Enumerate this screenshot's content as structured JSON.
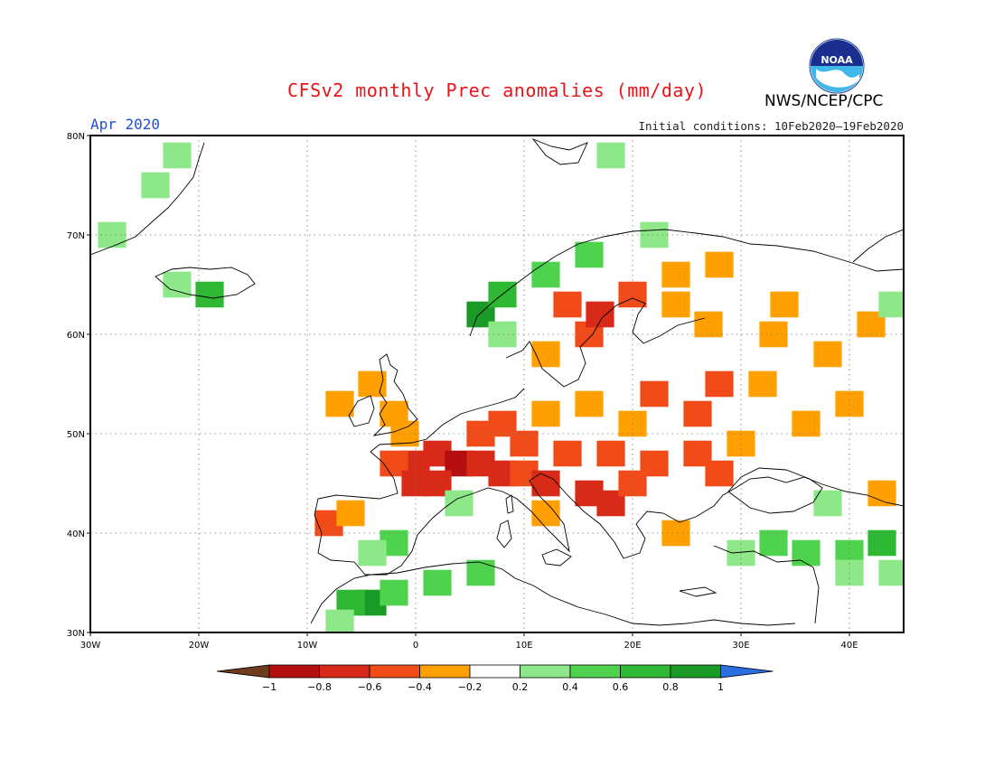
{
  "header": {
    "title": "CFSv2 monthly Prec anomalies (mm/day)",
    "agency": "NWS/NCEP/CPC",
    "logo_text": "NOAA",
    "month": "Apr 2020",
    "initial_conditions": "Initial conditions: 10Feb2020–19Feb2020"
  },
  "map": {
    "region": "Europe",
    "projection": "lat-lon",
    "lon_range": [
      -30,
      45
    ],
    "lat_range": [
      30,
      80
    ],
    "lat_labels": [
      "80N",
      "70N",
      "60N",
      "50N",
      "40N",
      "30N"
    ],
    "lon_labels": [
      "30W",
      "20W",
      "10W",
      "0",
      "10E",
      "20E",
      "30E",
      "40E"
    ],
    "grid": "dotted"
  },
  "colorbar": {
    "labels": [
      "−1",
      "−0.8",
      "−0.6",
      "−0.4",
      "−0.2",
      "0.2",
      "0.4",
      "0.6",
      "0.8",
      "1"
    ],
    "colors": [
      "#6e3b1e",
      "#b40e0e",
      "#d82a18",
      "#f04b18",
      "#ffa000",
      "#ffffff",
      "#8ee88a",
      "#4fd34f",
      "#2eb834",
      "#1a9a26",
      "#2a6ee0"
    ]
  },
  "anomaly_cells": [
    {
      "lon": 2,
      "lat": 48,
      "v": -0.75
    },
    {
      "lon": 4,
      "lat": 47,
      "v": -0.85
    },
    {
      "lon": 6,
      "lat": 47,
      "v": -0.8
    },
    {
      "lon": 0,
      "lat": 47,
      "v": -0.7
    },
    {
      "lon": -2,
      "lat": 47,
      "v": -0.6
    },
    {
      "lon": 2,
      "lat": 45,
      "v": -0.7
    },
    {
      "lon": 0,
      "lat": 45,
      "v": -0.65
    },
    {
      "lon": 8,
      "lat": 46,
      "v": -0.7
    },
    {
      "lon": 10,
      "lat": 46,
      "v": -0.6
    },
    {
      "lon": 12,
      "lat": 45,
      "v": -0.65
    },
    {
      "lon": 16,
      "lat": 44,
      "v": -0.75
    },
    {
      "lon": 18,
      "lat": 43,
      "v": -0.8
    },
    {
      "lon": 20,
      "lat": 45,
      "v": -0.6
    },
    {
      "lon": 8,
      "lat": 51,
      "v": -0.6
    },
    {
      "lon": 6,
      "lat": 50,
      "v": -0.55
    },
    {
      "lon": 10,
      "lat": 49,
      "v": -0.5
    },
    {
      "lon": 14,
      "lat": 48,
      "v": -0.45
    },
    {
      "lon": 18,
      "lat": 48,
      "v": -0.5
    },
    {
      "lon": 22,
      "lat": 47,
      "v": -0.45
    },
    {
      "lon": 26,
      "lat": 48,
      "v": -0.5
    },
    {
      "lon": 28,
      "lat": 46,
      "v": -0.45
    },
    {
      "lon": 26,
      "lat": 52,
      "v": -0.55
    },
    {
      "lon": 22,
      "lat": 54,
      "v": -0.5
    },
    {
      "lon": 28,
      "lat": 55,
      "v": -0.5
    },
    {
      "lon": 16,
      "lat": 53,
      "v": -0.4
    },
    {
      "lon": 12,
      "lat": 52,
      "v": -0.35
    },
    {
      "lon": 20,
      "lat": 51,
      "v": -0.4
    },
    {
      "lon": 16,
      "lat": 60,
      "v": -0.6
    },
    {
      "lon": 17,
      "lat": 62,
      "v": -0.65
    },
    {
      "lon": 20,
      "lat": 64,
      "v": -0.55
    },
    {
      "lon": 14,
      "lat": 63,
      "v": -0.45
    },
    {
      "lon": 24,
      "lat": 63,
      "v": -0.4
    },
    {
      "lon": 27,
      "lat": 61,
      "v": -0.35
    },
    {
      "lon": 33,
      "lat": 60,
      "v": -0.35
    },
    {
      "lon": 38,
      "lat": 58,
      "v": -0.35
    },
    {
      "lon": 40,
      "lat": 53,
      "v": -0.35
    },
    {
      "lon": 36,
      "lat": 51,
      "v": -0.3
    },
    {
      "lon": 32,
      "lat": 55,
      "v": -0.35
    },
    {
      "lon": 42,
      "lat": 61,
      "v": -0.3
    },
    {
      "lon": 34,
      "lat": 63,
      "v": -0.3
    },
    {
      "lon": 24,
      "lat": 66,
      "v": -0.35
    },
    {
      "lon": 28,
      "lat": 67,
      "v": -0.3
    },
    {
      "lon": 12,
      "lat": 58,
      "v": -0.3
    },
    {
      "lon": -2,
      "lat": 52,
      "v": -0.3
    },
    {
      "lon": -7,
      "lat": 53,
      "v": -0.3
    },
    {
      "lon": -4,
      "lat": 55,
      "v": -0.25
    },
    {
      "lon": -1,
      "lat": 50,
      "v": -0.3
    },
    {
      "lon": 30,
      "lat": 49,
      "v": -0.35
    },
    {
      "lon": 43,
      "lat": 44,
      "v": -0.3
    },
    {
      "lon": -8,
      "lat": 41,
      "v": -0.6
    },
    {
      "lon": -6,
      "lat": 42,
      "v": -0.3
    },
    {
      "lon": 12,
      "lat": 42,
      "v": -0.3
    },
    {
      "lon": 24,
      "lat": 40,
      "v": -0.3
    },
    {
      "lon": -4,
      "lat": 33,
      "v": 0.9
    },
    {
      "lon": -6,
      "lat": 33,
      "v": 0.7
    },
    {
      "lon": -2,
      "lat": 34,
      "v": 0.5
    },
    {
      "lon": 2,
      "lat": 35,
      "v": 0.4
    },
    {
      "lon": 6,
      "lat": 36,
      "v": 0.45
    },
    {
      "lon": -7,
      "lat": 31,
      "v": 0.35
    },
    {
      "lon": -2,
      "lat": 39,
      "v": 0.5
    },
    {
      "lon": -4,
      "lat": 38,
      "v": 0.3
    },
    {
      "lon": 4,
      "lat": 43,
      "v": 0.3
    },
    {
      "lon": 6,
      "lat": 62,
      "v": 0.95
    },
    {
      "lon": 8,
      "lat": 64,
      "v": 0.6
    },
    {
      "lon": 12,
      "lat": 66,
      "v": 0.5
    },
    {
      "lon": 16,
      "lat": 68,
      "v": 0.45
    },
    {
      "lon": 22,
      "lat": 70,
      "v": 0.3
    },
    {
      "lon": 8,
      "lat": 60,
      "v": 0.3
    },
    {
      "lon": -19,
      "lat": 64,
      "v": 0.6
    },
    {
      "lon": -22,
      "lat": 65,
      "v": 0.3
    },
    {
      "lon": -24,
      "lat": 75,
      "v": 0.35
    },
    {
      "lon": -22,
      "lat": 78,
      "v": 0.35
    },
    {
      "lon": -28,
      "lat": 70,
      "v": 0.3
    },
    {
      "lon": 18,
      "lat": 78,
      "v": 0.3
    },
    {
      "lon": 33,
      "lat": 39,
      "v": 0.5
    },
    {
      "lon": 36,
      "lat": 38,
      "v": 0.4
    },
    {
      "lon": 40,
      "lat": 38,
      "v": 0.55
    },
    {
      "lon": 43,
      "lat": 39,
      "v": 0.6
    },
    {
      "lon": 30,
      "lat": 38,
      "v": 0.35
    },
    {
      "lon": 40,
      "lat": 36,
      "v": 0.3
    },
    {
      "lon": 44,
      "lat": 36,
      "v": 0.35
    },
    {
      "lon": 38,
      "lat": 43,
      "v": 0.3
    },
    {
      "lon": 44,
      "lat": 63,
      "v": 0.3
    }
  ]
}
